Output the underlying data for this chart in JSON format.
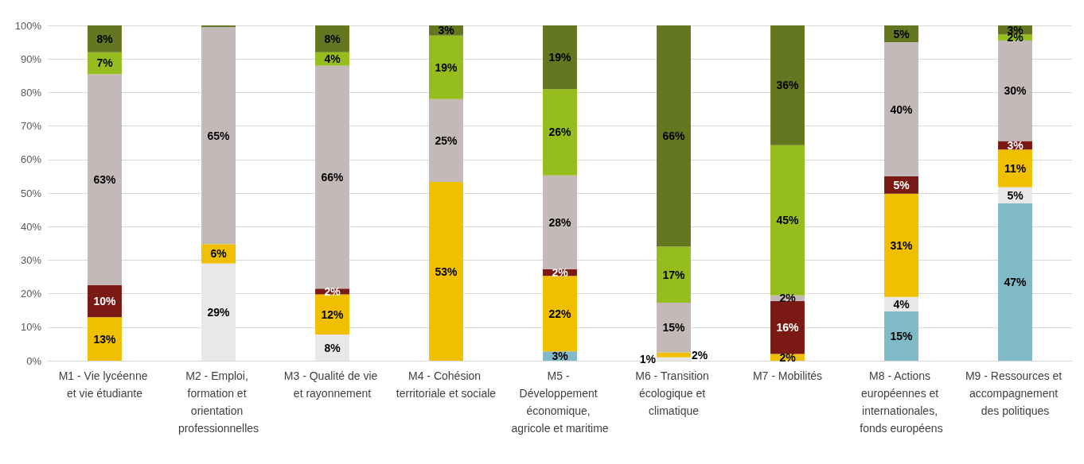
{
  "chart_data": {
    "type": "bar",
    "stacked": true,
    "grid": "y",
    "categories": [
      "M1 - Vie lycéenne et vie étudiante",
      "M2 - Emploi, formation et orientation professionnelles",
      "M3 - Qualité de vie et rayonnement",
      "M4 - Cohésion territoriale et sociale",
      "M5 - Développement économique, agricole et maritime",
      "M6 - Transition écologique et climatique",
      "M7 - Mobilités",
      "M8 - Actions européennes et internationales, fonds européens",
      "M9 - Ressources et accompagnement des politiques"
    ],
    "ylim": [
      0,
      100
    ],
    "yticks": [
      {
        "value": 0,
        "label": "0%"
      },
      {
        "value": 10,
        "label": "10%"
      },
      {
        "value": 20,
        "label": "20%"
      },
      {
        "value": 30,
        "label": "30%"
      },
      {
        "value": 40,
        "label": "40%"
      },
      {
        "value": 50,
        "label": "50%"
      },
      {
        "value": 60,
        "label": "60%"
      },
      {
        "value": 70,
        "label": "70%"
      },
      {
        "value": 80,
        "label": "80%"
      },
      {
        "value": 90,
        "label": "90%"
      },
      {
        "value": 100,
        "label": "100%"
      }
    ],
    "series": [
      {
        "color": "#7fbac6",
        "values": [
          null,
          null,
          null,
          null,
          2.8,
          null,
          null,
          14.7,
          47
        ],
        "value_labels": [
          null,
          null,
          null,
          null,
          "3%",
          null,
          null,
          "15%",
          "47%"
        ]
      },
      {
        "color": "#e8e8e8",
        "values": [
          null,
          29,
          7.8,
          null,
          null,
          1,
          null,
          4.3,
          4.8
        ],
        "value_labels": [
          null,
          "29%",
          "8%",
          null,
          null,
          "1%",
          null,
          "4%",
          "5%"
        ]
      },
      {
        "color": "#f0c000",
        "values": [
          13,
          5.8,
          12,
          53.3,
          22.5,
          1.5,
          2,
          30.8,
          11.2
        ],
        "value_labels": [
          "13%",
          "6%",
          "12%",
          "53%",
          "22%",
          "2%",
          "2%",
          "31%",
          "11%"
        ]
      },
      {
        "color": "#7b1a14",
        "values": [
          9.5,
          null,
          1.7,
          null,
          2,
          null,
          15.8,
          5.2,
          2.5
        ],
        "value_labels": [
          "10%",
          null,
          "2%",
          null,
          "2%",
          null,
          "16%",
          "5%",
          "3%"
        ]
      },
      {
        "color": "#c4b9b9",
        "values": [
          63,
          64.7,
          66.5,
          24.7,
          28,
          14.8,
          1.7,
          40,
          30
        ],
        "value_labels": [
          "63%",
          "65%",
          "66%",
          "25%",
          "28%",
          "15%",
          "2%",
          "40%",
          "30%"
        ]
      },
      {
        "color": "#96bd1e",
        "values": [
          6.5,
          null,
          4,
          19,
          25.7,
          16.7,
          44.8,
          null,
          1.8
        ],
        "value_labels": [
          "7%",
          null,
          "4%",
          "19%",
          "26%",
          "17%",
          "45%",
          null,
          "2%"
        ]
      },
      {
        "color": "#64761f",
        "values": [
          8,
          0.5,
          8,
          3,
          19,
          66,
          35.7,
          5,
          2.7
        ],
        "value_labels": [
          "8%",
          null,
          "8%",
          "3%",
          "19%",
          "66%",
          "36%",
          "5%",
          "3%"
        ]
      }
    ]
  }
}
